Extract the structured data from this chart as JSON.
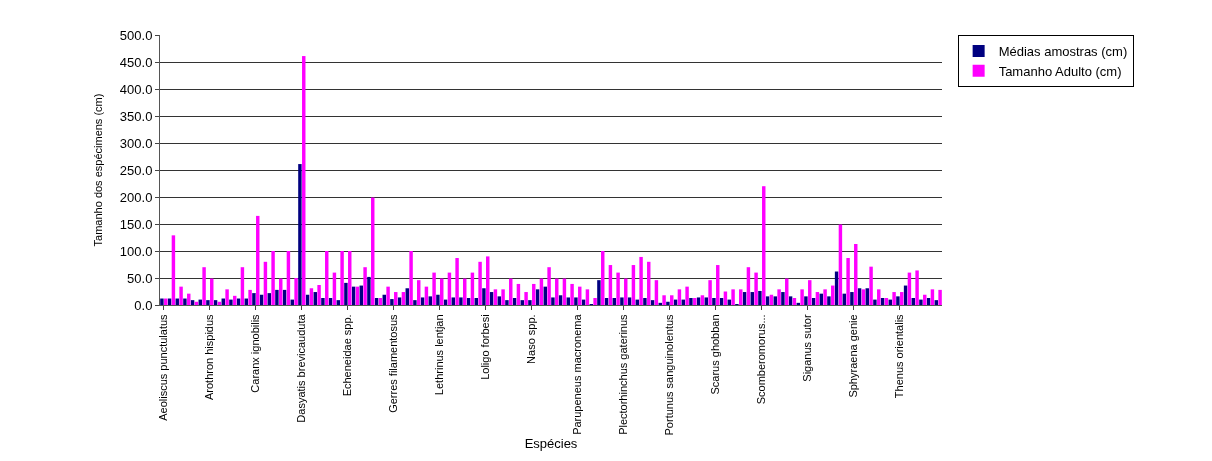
{
  "chart_data": {
    "type": "bar",
    "xlabel": "Espécies",
    "ylabel": "Tamanho dos espécimens (cm)",
    "categories": [
      "Aeoliscus punctulatus",
      null,
      null,
      null,
      null,
      null,
      "Arothron hispidus",
      null,
      null,
      null,
      null,
      null,
      "Caranx ignobilis",
      null,
      null,
      null,
      null,
      null,
      "Dasyatis brevicauduta",
      null,
      null,
      null,
      null,
      null,
      "Echeneidae spp.",
      null,
      null,
      null,
      null,
      null,
      "Gerres filamentosus",
      null,
      null,
      null,
      null,
      null,
      "Lethrinus lentjan",
      null,
      null,
      null,
      null,
      null,
      "Loligo forbesi",
      null,
      null,
      null,
      null,
      null,
      "Naso spp.",
      null,
      null,
      null,
      null,
      null,
      "Parupeneus macronema",
      null,
      null,
      null,
      null,
      null,
      "Plectorhinchus gaterinus",
      null,
      null,
      null,
      null,
      null,
      "Portunus sanguinolentus",
      null,
      null,
      null,
      null,
      null,
      "Scarus ghobban",
      null,
      null,
      null,
      null,
      null,
      "Scomberomorus...",
      null,
      null,
      null,
      null,
      null,
      "Siganus sutor",
      null,
      null,
      null,
      null,
      null,
      "Sphyraena genie",
      null,
      null,
      null,
      null,
      null,
      "Thenus orientalis",
      null,
      null,
      null,
      null,
      null
    ],
    "series": [
      {
        "name": "Médias amostras (cm)",
        "color": "#000080",
        "values": [
          12,
          12,
          12,
          12,
          9,
          10,
          9,
          9,
          12,
          10,
          12,
          12,
          22,
          19,
          22,
          28,
          28,
          10,
          261,
          19,
          24,
          13,
          13,
          9,
          41,
          34,
          36,
          52,
          13,
          19,
          11,
          14,
          31,
          9,
          14,
          16,
          19,
          10,
          14,
          14,
          13,
          13,
          31,
          24,
          16,
          9,
          13,
          9,
          9,
          29,
          34,
          14,
          18,
          14,
          14,
          10,
          1,
          46,
          13,
          13,
          14,
          14,
          10,
          13,
          9,
          4,
          6,
          10,
          10,
          13,
          14,
          14,
          13,
          13,
          10,
          1,
          24,
          24,
          26,
          16,
          16,
          24,
          16,
          4,
          16,
          13,
          21,
          16,
          62,
          21,
          24,
          31,
          31,
          10,
          13,
          10,
          16,
          36,
          13,
          10,
          13,
          9
        ]
      },
      {
        "name": "Tamanho Adulto (cm)",
        "color": "#ff00ff",
        "values": [
          12,
          129,
          34,
          21,
          6,
          70,
          49,
          6,
          29,
          17,
          70,
          28,
          165,
          80,
          100,
          49,
          100,
          50,
          461,
          31,
          37,
          100,
          60,
          100,
          100,
          34,
          70,
          199,
          13,
          34,
          24,
          24,
          100,
          46,
          34,
          60,
          49,
          60,
          87,
          49,
          60,
          80,
          90,
          29,
          29,
          49,
          39,
          24,
          39,
          49,
          70,
          49,
          49,
          39,
          34,
          29,
          13,
          100,
          74,
          60,
          49,
          74,
          89,
          80,
          46,
          18,
          18,
          29,
          34,
          13,
          18,
          46,
          74,
          25,
          29,
          29,
          70,
          60,
          220,
          19,
          29,
          49,
          13,
          29,
          46,
          24,
          29,
          36,
          149,
          87,
          113,
          29,
          71,
          29,
          13,
          24,
          24,
          60,
          64,
          19,
          29,
          28
        ]
      }
    ],
    "ylim": [
      0,
      500
    ],
    "yticks": [
      {
        "value": 0,
        "label": "0.0"
      },
      {
        "value": 50,
        "label": "50.0"
      },
      {
        "value": 100,
        "label": "100.0"
      },
      {
        "value": 150,
        "label": "150.0"
      },
      {
        "value": 200,
        "label": "200.0"
      },
      {
        "value": 250,
        "label": "250.0"
      },
      {
        "value": 300,
        "label": "300.0"
      },
      {
        "value": 350,
        "label": "350.0"
      },
      {
        "value": 400,
        "label": "400.0"
      },
      {
        "value": 450,
        "label": "450.0"
      },
      {
        "value": 500,
        "label": "500.0"
      }
    ],
    "grid": "y",
    "legend": "top right"
  }
}
